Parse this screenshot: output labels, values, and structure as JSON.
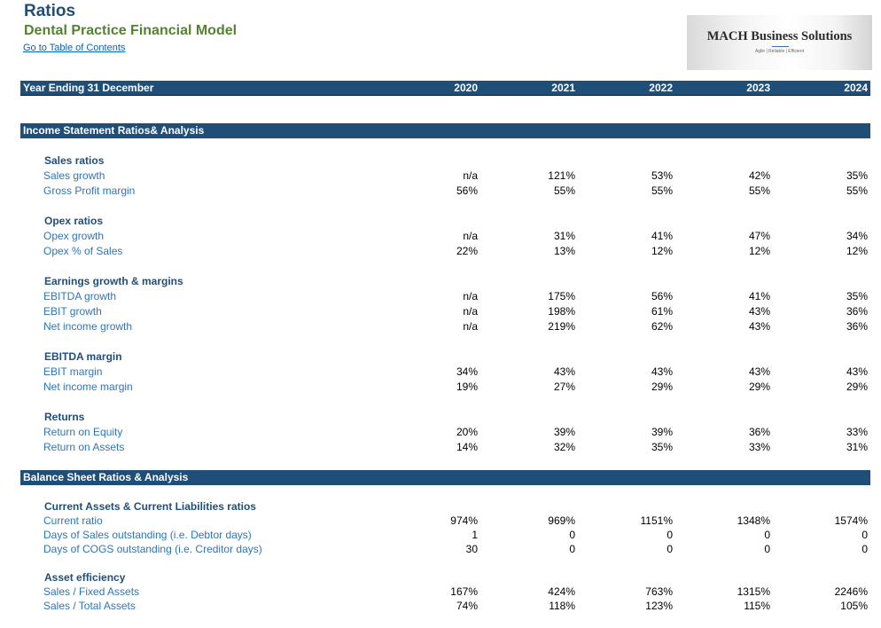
{
  "header": {
    "title": "Ratios",
    "subtitle": "Dental Practice Financial Model",
    "toc_link": "Go to Table of Contents"
  },
  "logo": {
    "name": "MACH Business Solutions",
    "tagline": "Agile | Reliable | Efficient"
  },
  "year_band": {
    "label": "Year Ending 31 December",
    "years": [
      "2020",
      "2021",
      "2022",
      "2023",
      "2024"
    ]
  },
  "income_section": {
    "title": "Income Statement Ratios& Analysis",
    "groups": [
      {
        "title": "Sales ratios",
        "rows": [
          {
            "label": "Sales growth",
            "values": [
              "n/a",
              "121%",
              "53%",
              "42%",
              "35%"
            ]
          },
          {
            "label": "Gross Profit margin",
            "values": [
              "56%",
              "55%",
              "55%",
              "55%",
              "55%"
            ]
          }
        ]
      },
      {
        "title": "Opex ratios",
        "rows": [
          {
            "label": "Opex growth",
            "values": [
              "n/a",
              "31%",
              "41%",
              "47%",
              "34%"
            ]
          },
          {
            "label": "Opex % of Sales",
            "values": [
              "22%",
              "13%",
              "12%",
              "12%",
              "12%"
            ]
          }
        ]
      },
      {
        "title": "Earnings growth & margins",
        "rows": [
          {
            "label": "EBITDA growth",
            "values": [
              "n/a",
              "175%",
              "56%",
              "41%",
              "35%"
            ]
          },
          {
            "label": "EBIT growth",
            "values": [
              "n/a",
              "198%",
              "61%",
              "43%",
              "36%"
            ]
          },
          {
            "label": "Net income growth",
            "values": [
              "n/a",
              "219%",
              "62%",
              "43%",
              "36%"
            ]
          }
        ]
      },
      {
        "title": "EBITDA margin",
        "rows": [
          {
            "label": "EBIT margin",
            "values": [
              "34%",
              "43%",
              "43%",
              "43%",
              "43%"
            ]
          },
          {
            "label": "Net income margin",
            "values": [
              "19%",
              "27%",
              "29%",
              "29%",
              "29%"
            ]
          }
        ]
      },
      {
        "title": "Returns",
        "rows": [
          {
            "label": "Return on Equity",
            "values": [
              "20%",
              "39%",
              "39%",
              "36%",
              "33%"
            ]
          },
          {
            "label": "Return on Assets",
            "values": [
              "14%",
              "32%",
              "35%",
              "33%",
              "31%"
            ]
          }
        ]
      }
    ]
  },
  "balance_section": {
    "title": "Balance Sheet  Ratios & Analysis",
    "groups": [
      {
        "title": "Current Assets & Current Liabilities ratios",
        "rows": [
          {
            "label": "Current ratio",
            "values": [
              "974%",
              "969%",
              "1151%",
              "1348%",
              "1574%"
            ]
          },
          {
            "label": "Days of Sales outstanding (i.e. Debtor days)",
            "values": [
              "1",
              "0",
              "0",
              "0",
              "0"
            ]
          },
          {
            "label": "Days of COGS outstanding (i.e. Creditor days)",
            "values": [
              "30",
              "0",
              "0",
              "0",
              "0"
            ]
          }
        ]
      },
      {
        "title": "Asset efficiency",
        "rows": [
          {
            "label": "Sales / Fixed Assets",
            "values": [
              "167%",
              "424%",
              "763%",
              "1315%",
              "2246%"
            ]
          },
          {
            "label": "Sales / Total Assets",
            "values": [
              "74%",
              "118%",
              "123%",
              "115%",
              "105%"
            ]
          }
        ]
      }
    ]
  }
}
